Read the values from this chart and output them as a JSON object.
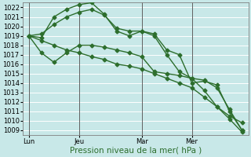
{
  "background_color": "#c8e8e8",
  "grid_color": "#ffffff",
  "line_color": "#2d6e2d",
  "marker": "D",
  "marker_size": 2.5,
  "linewidth": 1.0,
  "xlabel": "Pression niveau de la mer( hPa )",
  "ylim": [
    1008.5,
    1022.5
  ],
  "yticks": [
    1009,
    1010,
    1011,
    1012,
    1013,
    1014,
    1015,
    1016,
    1017,
    1018,
    1019,
    1020,
    1021,
    1022
  ],
  "xtick_labels": [
    "Lun",
    "Jeu",
    "Mar",
    "Mer"
  ],
  "xtick_positions": [
    0,
    4,
    9,
    13
  ],
  "vline_positions": [
    0,
    4,
    9,
    13
  ],
  "xlim": [
    -0.5,
    17.5
  ],
  "series": [
    [
      1019.0,
      1019.2,
      1020.2,
      1021.0,
      1021.5,
      1021.8,
      1021.2,
      1019.8,
      1019.5,
      1019.5,
      1019.2,
      1017.5,
      1017.0,
      1014.0,
      1014.2,
      1013.8,
      1011.0,
      1009.0
    ],
    [
      1019.0,
      1018.8,
      1021.0,
      1021.8,
      1022.3,
      1022.5,
      1021.3,
      1019.5,
      1019.0,
      1019.5,
      1019.0,
      1017.0,
      1015.2,
      1014.5,
      1014.3,
      1013.5,
      1011.2,
      1009.0
    ],
    [
      1019.0,
      1017.2,
      1016.2,
      1017.2,
      1018.0,
      1018.0,
      1017.8,
      1017.5,
      1017.2,
      1016.8,
      1015.2,
      1015.0,
      1014.8,
      1014.5,
      1013.2,
      1011.5,
      1010.2,
      1008.8
    ],
    [
      1019.0,
      1018.5,
      1018.0,
      1017.5,
      1017.2,
      1016.8,
      1016.5,
      1016.0,
      1015.8,
      1015.5,
      1015.0,
      1014.5,
      1014.0,
      1013.5,
      1012.5,
      1011.5,
      1010.5,
      1009.8
    ]
  ],
  "n_points": 18,
  "tick_fontsize": 6,
  "xlabel_fontsize": 7.5,
  "label_color": "#2d6e2d"
}
